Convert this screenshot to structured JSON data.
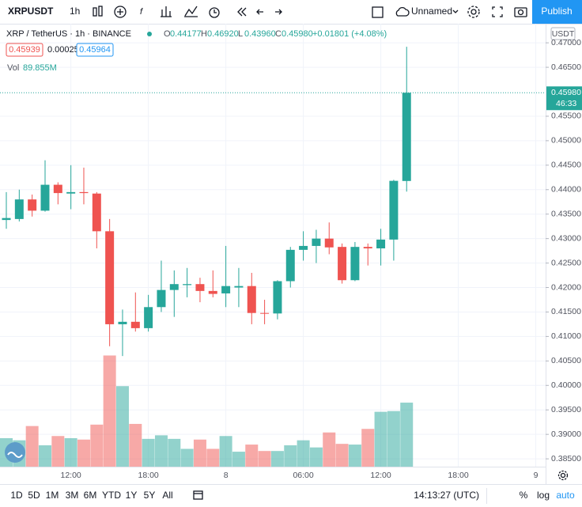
{
  "toolbar": {
    "symbol": "XRPUSDT",
    "interval": "1h",
    "layout_name": "Unnamed",
    "publish": "Publish"
  },
  "legend": {
    "title": "XRP / TetherUS · 1h · BINANCE",
    "ohlc": [
      {
        "label": "O",
        "value": "0.44177"
      },
      {
        "label": "H",
        "value": "0.46920"
      },
      {
        "label": "L",
        "value": "0.43960"
      },
      {
        "label": "C",
        "value": "0.45980"
      }
    ],
    "change": "+0.01801 (+4.08%)",
    "bid": "0.45939",
    "spread": "0.00025",
    "ask": "0.45964",
    "vol_label": "Vol",
    "vol_value": "89.855M"
  },
  "chart": {
    "type": "candlestick",
    "currency": "USDT",
    "up_color": "#26a69a",
    "down_color": "#ef5350",
    "grid": true,
    "ylim": [
      0.3834,
      0.4739
    ],
    "yticks": [
      {
        "value": 0.47,
        "label": "0.47000"
      },
      {
        "value": 0.465,
        "label": "0.46500"
      },
      {
        "value": 0.455,
        "label": "0.45500"
      },
      {
        "value": 0.45,
        "label": "0.45000"
      },
      {
        "value": 0.445,
        "label": "0.44500"
      },
      {
        "value": 0.44,
        "label": "0.44000"
      },
      {
        "value": 0.435,
        "label": "0.43500"
      },
      {
        "value": 0.43,
        "label": "0.43000"
      },
      {
        "value": 0.425,
        "label": "0.42500"
      },
      {
        "value": 0.42,
        "label": "0.42000"
      },
      {
        "value": 0.415,
        "label": "0.41500"
      },
      {
        "value": 0.41,
        "label": "0.41000"
      },
      {
        "value": 0.405,
        "label": "0.40500"
      },
      {
        "value": 0.4,
        "label": "0.40000"
      },
      {
        "value": 0.395,
        "label": "0.39500"
      },
      {
        "value": 0.39,
        "label": "0.39000"
      },
      {
        "value": 0.385,
        "label": "0.38500"
      }
    ],
    "time_axis": [
      null,
      null,
      null,
      null,
      null,
      "12:00",
      null,
      null,
      null,
      null,
      null,
      "18:00",
      null,
      null,
      null,
      null,
      null,
      "8",
      null,
      null,
      null,
      null,
      null,
      "06:00",
      null,
      null,
      null,
      null,
      null,
      "12:00",
      null,
      null,
      null,
      null,
      null,
      "18:00",
      null,
      null,
      null,
      null,
      null,
      "9"
    ],
    "last_price_label": "0.45980",
    "countdown": "46:33",
    "candles": [
      {
        "open": 0.4338,
        "high": 0.4395,
        "low": 0.432,
        "close": 0.4342
      },
      {
        "open": 0.434,
        "high": 0.44,
        "low": 0.4335,
        "close": 0.438
      },
      {
        "open": 0.438,
        "high": 0.439,
        "low": 0.4345,
        "close": 0.4357
      },
      {
        "open": 0.4357,
        "high": 0.446,
        "low": 0.4355,
        "close": 0.441
      },
      {
        "open": 0.441,
        "high": 0.4415,
        "low": 0.437,
        "close": 0.4393
      },
      {
        "open": 0.4392,
        "high": 0.445,
        "low": 0.436,
        "close": 0.4395
      },
      {
        "open": 0.4395,
        "high": 0.4445,
        "low": 0.437,
        "close": 0.4393
      },
      {
        "open": 0.4392,
        "high": 0.4395,
        "low": 0.428,
        "close": 0.4315
      },
      {
        "open": 0.4315,
        "high": 0.434,
        "low": 0.408,
        "close": 0.4125
      },
      {
        "open": 0.4125,
        "high": 0.4155,
        "low": 0.406,
        "close": 0.413
      },
      {
        "open": 0.413,
        "high": 0.419,
        "low": 0.411,
        "close": 0.4117
      },
      {
        "open": 0.4117,
        "high": 0.4185,
        "low": 0.411,
        "close": 0.416
      },
      {
        "open": 0.416,
        "high": 0.4255,
        "low": 0.415,
        "close": 0.4195
      },
      {
        "open": 0.4195,
        "high": 0.4235,
        "low": 0.414,
        "close": 0.4207
      },
      {
        "open": 0.4205,
        "high": 0.424,
        "low": 0.418,
        "close": 0.4207
      },
      {
        "open": 0.4207,
        "high": 0.422,
        "low": 0.417,
        "close": 0.4193
      },
      {
        "open": 0.4193,
        "high": 0.4235,
        "low": 0.418,
        "close": 0.4187
      },
      {
        "open": 0.4188,
        "high": 0.4285,
        "low": 0.416,
        "close": 0.4203
      },
      {
        "open": 0.42,
        "high": 0.424,
        "low": 0.416,
        "close": 0.4203
      },
      {
        "open": 0.4203,
        "high": 0.423,
        "low": 0.4125,
        "close": 0.4148
      },
      {
        "open": 0.4148,
        "high": 0.4175,
        "low": 0.4125,
        "close": 0.4147
      },
      {
        "open": 0.4147,
        "high": 0.4215,
        "low": 0.4135,
        "close": 0.4213
      },
      {
        "open": 0.4213,
        "high": 0.4283,
        "low": 0.42,
        "close": 0.4277
      },
      {
        "open": 0.4277,
        "high": 0.4315,
        "low": 0.4255,
        "close": 0.4285
      },
      {
        "open": 0.4285,
        "high": 0.4318,
        "low": 0.425,
        "close": 0.43
      },
      {
        "open": 0.43,
        "high": 0.4333,
        "low": 0.4268,
        "close": 0.4282
      },
      {
        "open": 0.4283,
        "high": 0.429,
        "low": 0.4208,
        "close": 0.4215
      },
      {
        "open": 0.4215,
        "high": 0.4293,
        "low": 0.4213,
        "close": 0.4283
      },
      {
        "open": 0.4283,
        "high": 0.429,
        "low": 0.4245,
        "close": 0.428
      },
      {
        "open": 0.428,
        "high": 0.432,
        "low": 0.4245,
        "close": 0.4298
      },
      {
        "open": 0.4298,
        "high": 0.442,
        "low": 0.4255,
        "close": 0.4418
      },
      {
        "open": 0.44177,
        "high": 0.4692,
        "low": 0.4396,
        "close": 0.4598
      }
    ],
    "volume": [
      40,
      37,
      57,
      30,
      43,
      40,
      38,
      59,
      156,
      113,
      60,
      39,
      44,
      39,
      25,
      38,
      25,
      43,
      21,
      31,
      22,
      22,
      30,
      37,
      27,
      48,
      32,
      31,
      53,
      77,
      78,
      89.855
    ]
  },
  "bottom_bar": {
    "ranges": [
      "1D",
      "5D",
      "1M",
      "3M",
      "6M",
      "YTD",
      "1Y",
      "5Y",
      "All"
    ],
    "clock": "14:13:27 (UTC)",
    "percent": "%",
    "log": "log",
    "auto": "auto"
  }
}
